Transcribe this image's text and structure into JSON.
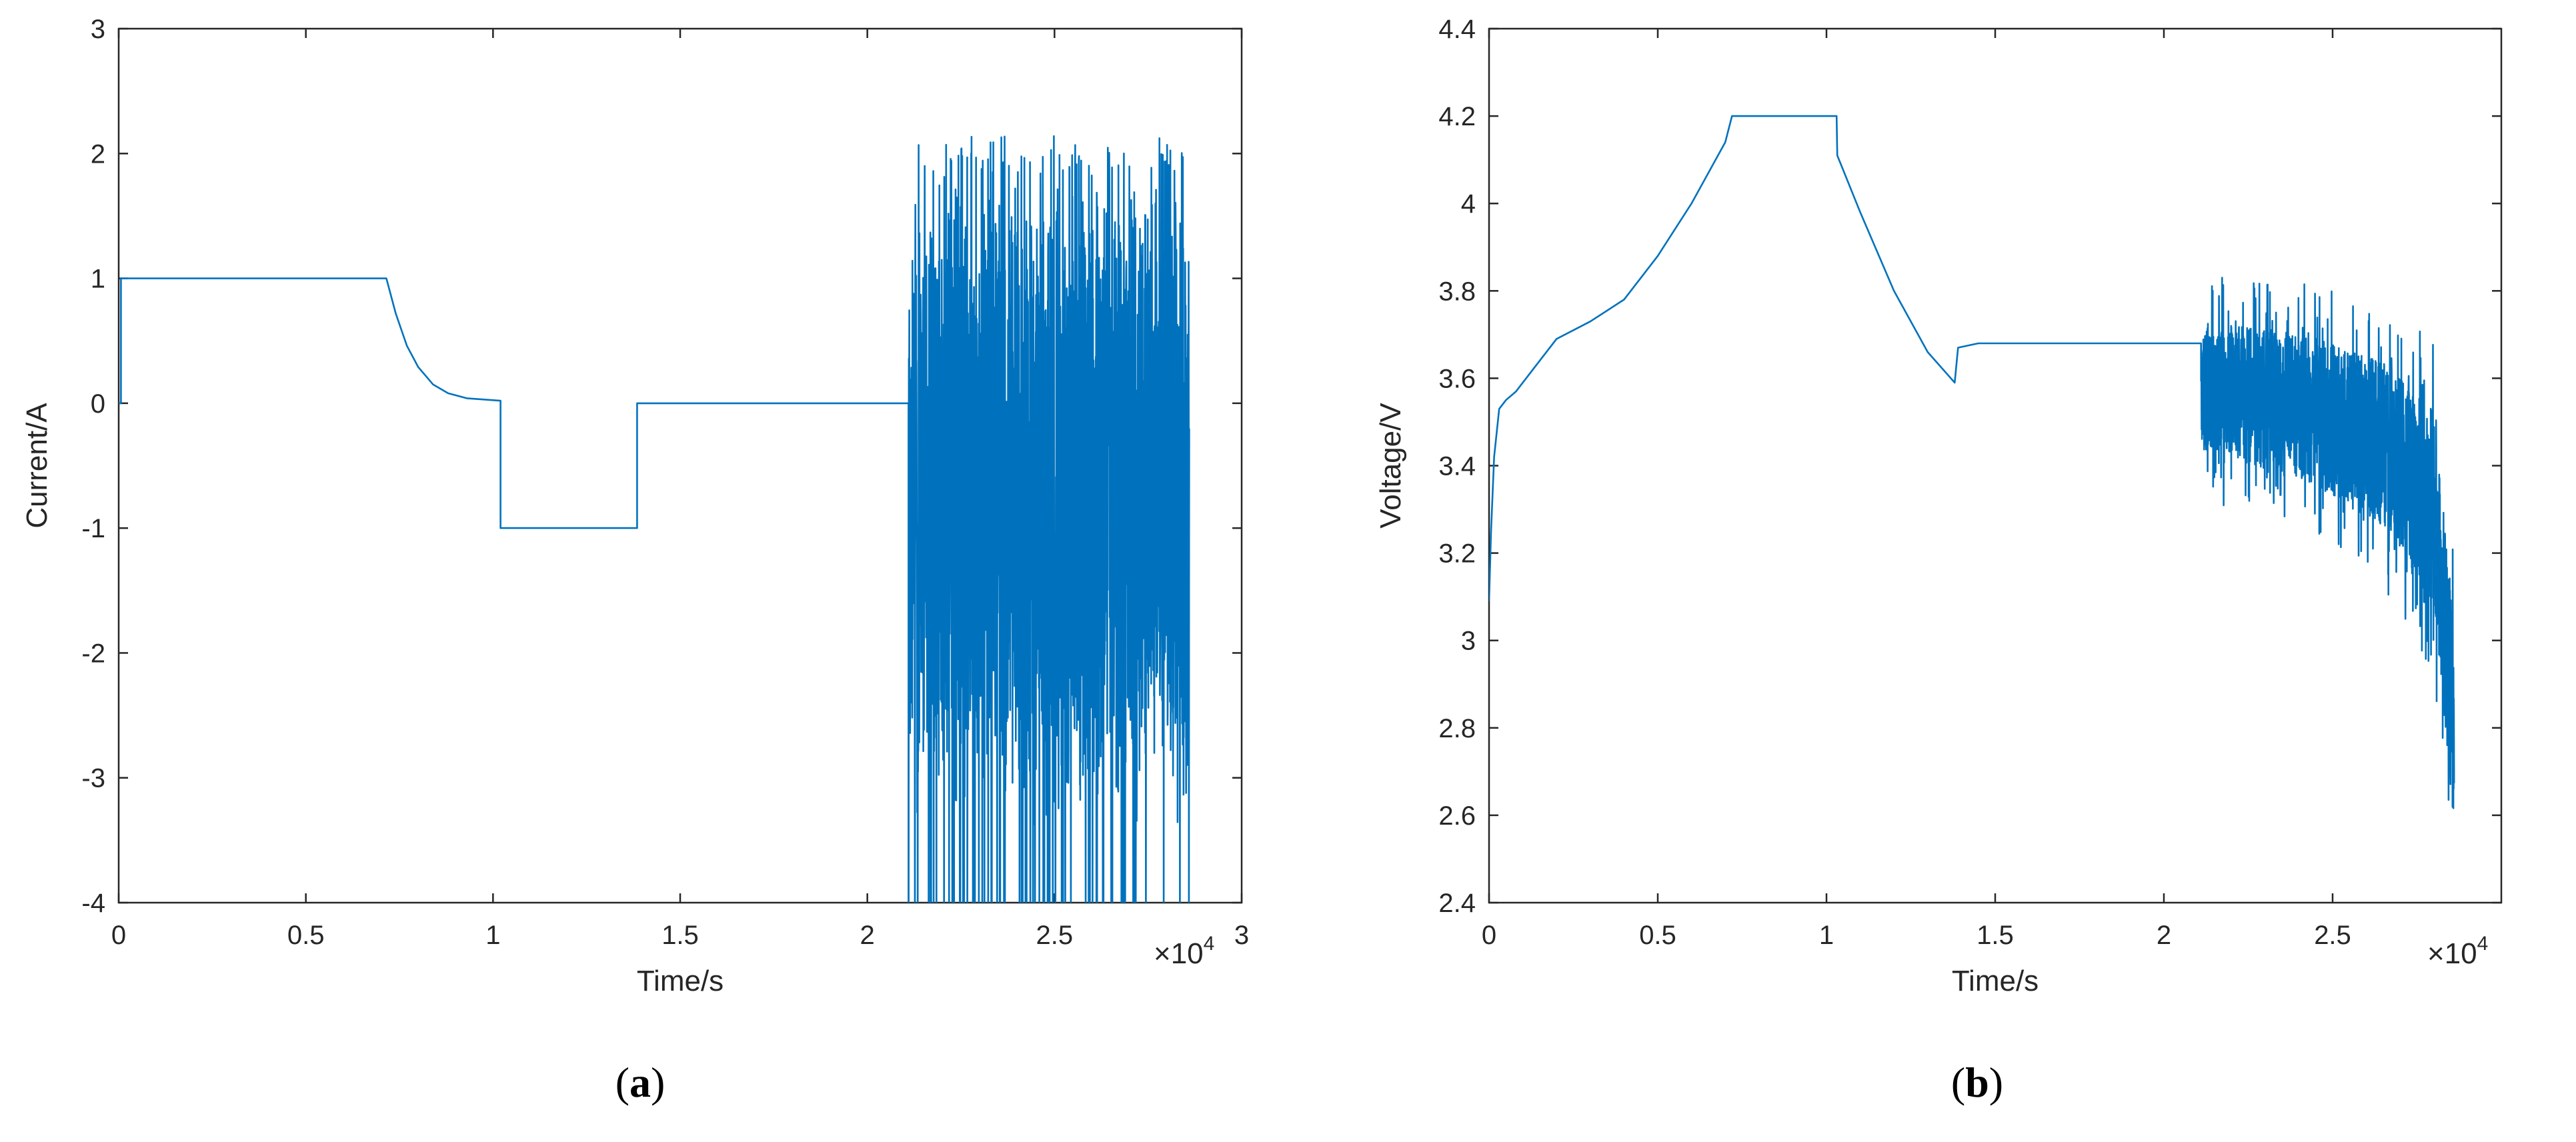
{
  "chart_data": [
    {
      "panel": "(a)",
      "panel_letter": "a",
      "type": "line",
      "xlabel": "Time/s",
      "ylabel": "Current/A",
      "x_exponent_label": "×10",
      "x_exponent": "4",
      "xlim": [
        0,
        30000
      ],
      "ylim": [
        -4,
        3
      ],
      "xticks": [
        0,
        5000,
        10000,
        15000,
        20000,
        25000,
        30000
      ],
      "xtick_labels": [
        "0",
        "0.5",
        "1",
        "1.5",
        "2",
        "2.5",
        "3"
      ],
      "yticks": [
        -4,
        -3,
        -2,
        -1,
        0,
        1,
        2,
        3
      ],
      "ytick_labels": [
        "-4",
        "-3",
        "-2",
        "-1",
        "0",
        "1",
        "2",
        "3"
      ],
      "line_color": "#0072BD",
      "segments": [
        {
          "description": "rest",
          "x": [
            0,
            60
          ],
          "y": [
            0,
            0
          ]
        },
        {
          "description": "constant-current charge",
          "x": [
            60,
            7150
          ],
          "y": [
            1,
            1
          ]
        },
        {
          "description": "constant-voltage taper",
          "x": [
            7150,
            7400,
            7700,
            8000,
            8400,
            8800,
            9300,
            10200
          ],
          "y": [
            1,
            0.72,
            0.46,
            0.29,
            0.15,
            0.08,
            0.04,
            0.02
          ]
        },
        {
          "description": "constant-current discharge",
          "x": [
            10200,
            13850
          ],
          "y": [
            -1,
            -1
          ]
        },
        {
          "description": "rest",
          "x": [
            13850,
            21100
          ],
          "y": [
            0,
            0
          ]
        },
        {
          "description": "dynamic load profile",
          "x": [
            21100,
            28600
          ],
          "y_range": [
            -4,
            2.15
          ],
          "pattern": "noise"
        }
      ]
    },
    {
      "panel": "(b)",
      "panel_letter": "b",
      "type": "line",
      "xlabel": "Time/s",
      "ylabel": "Voltage/V",
      "x_exponent_label": "×10",
      "x_exponent": "4",
      "xlim": [
        0,
        30000
      ],
      "ylim": [
        2.4,
        4.4
      ],
      "xticks": [
        0,
        5000,
        10000,
        15000,
        20000,
        25000
      ],
      "xtick_labels": [
        "0",
        "0.5",
        "1",
        "1.5",
        "2",
        "2.5"
      ],
      "yticks": [
        2.4,
        2.6,
        2.8,
        3.0,
        3.2,
        3.4,
        3.6,
        3.8,
        4.0,
        4.2,
        4.4
      ],
      "ytick_labels": [
        "2.4",
        "2.6",
        "2.8",
        "3",
        "3.2",
        "3.4",
        "3.6",
        "3.8",
        "4",
        "4.2",
        "4.4"
      ],
      "line_color": "#0072BD",
      "segments": [
        {
          "description": "charge",
          "x": [
            0,
            60,
            150,
            300,
            500,
            800,
            1200,
            2000,
            3000,
            4000,
            5000,
            6000,
            7000,
            7200
          ],
          "y": [
            3.09,
            3.25,
            3.42,
            3.53,
            3.55,
            3.57,
            3.61,
            3.69,
            3.73,
            3.78,
            3.88,
            4.0,
            4.14,
            4.2
          ]
        },
        {
          "description": "constant-voltage hold",
          "x": [
            7200,
            10300
          ],
          "y": [
            4.2,
            4.2
          ]
        },
        {
          "description": "discharge",
          "x": [
            10300,
            10320,
            11000,
            12000,
            13000,
            13800
          ],
          "y": [
            4.2,
            4.11,
            3.98,
            3.8,
            3.66,
            3.59
          ]
        },
        {
          "description": "rest",
          "x": [
            13800,
            13900,
            14500,
            21100
          ],
          "y": [
            3.59,
            3.67,
            3.68,
            3.68
          ]
        },
        {
          "description": "dynamic load profile",
          "x": [
            21100,
            24000,
            26500,
            28000,
            28600
          ],
          "y_center": [
            3.58,
            3.54,
            3.45,
            3.3,
            2.8
          ],
          "noise_amplitude": [
            0.2,
            0.22,
            0.25,
            0.3,
            0.3
          ],
          "min": 2.5,
          "max": 3.83,
          "pattern": "noise"
        }
      ]
    }
  ]
}
